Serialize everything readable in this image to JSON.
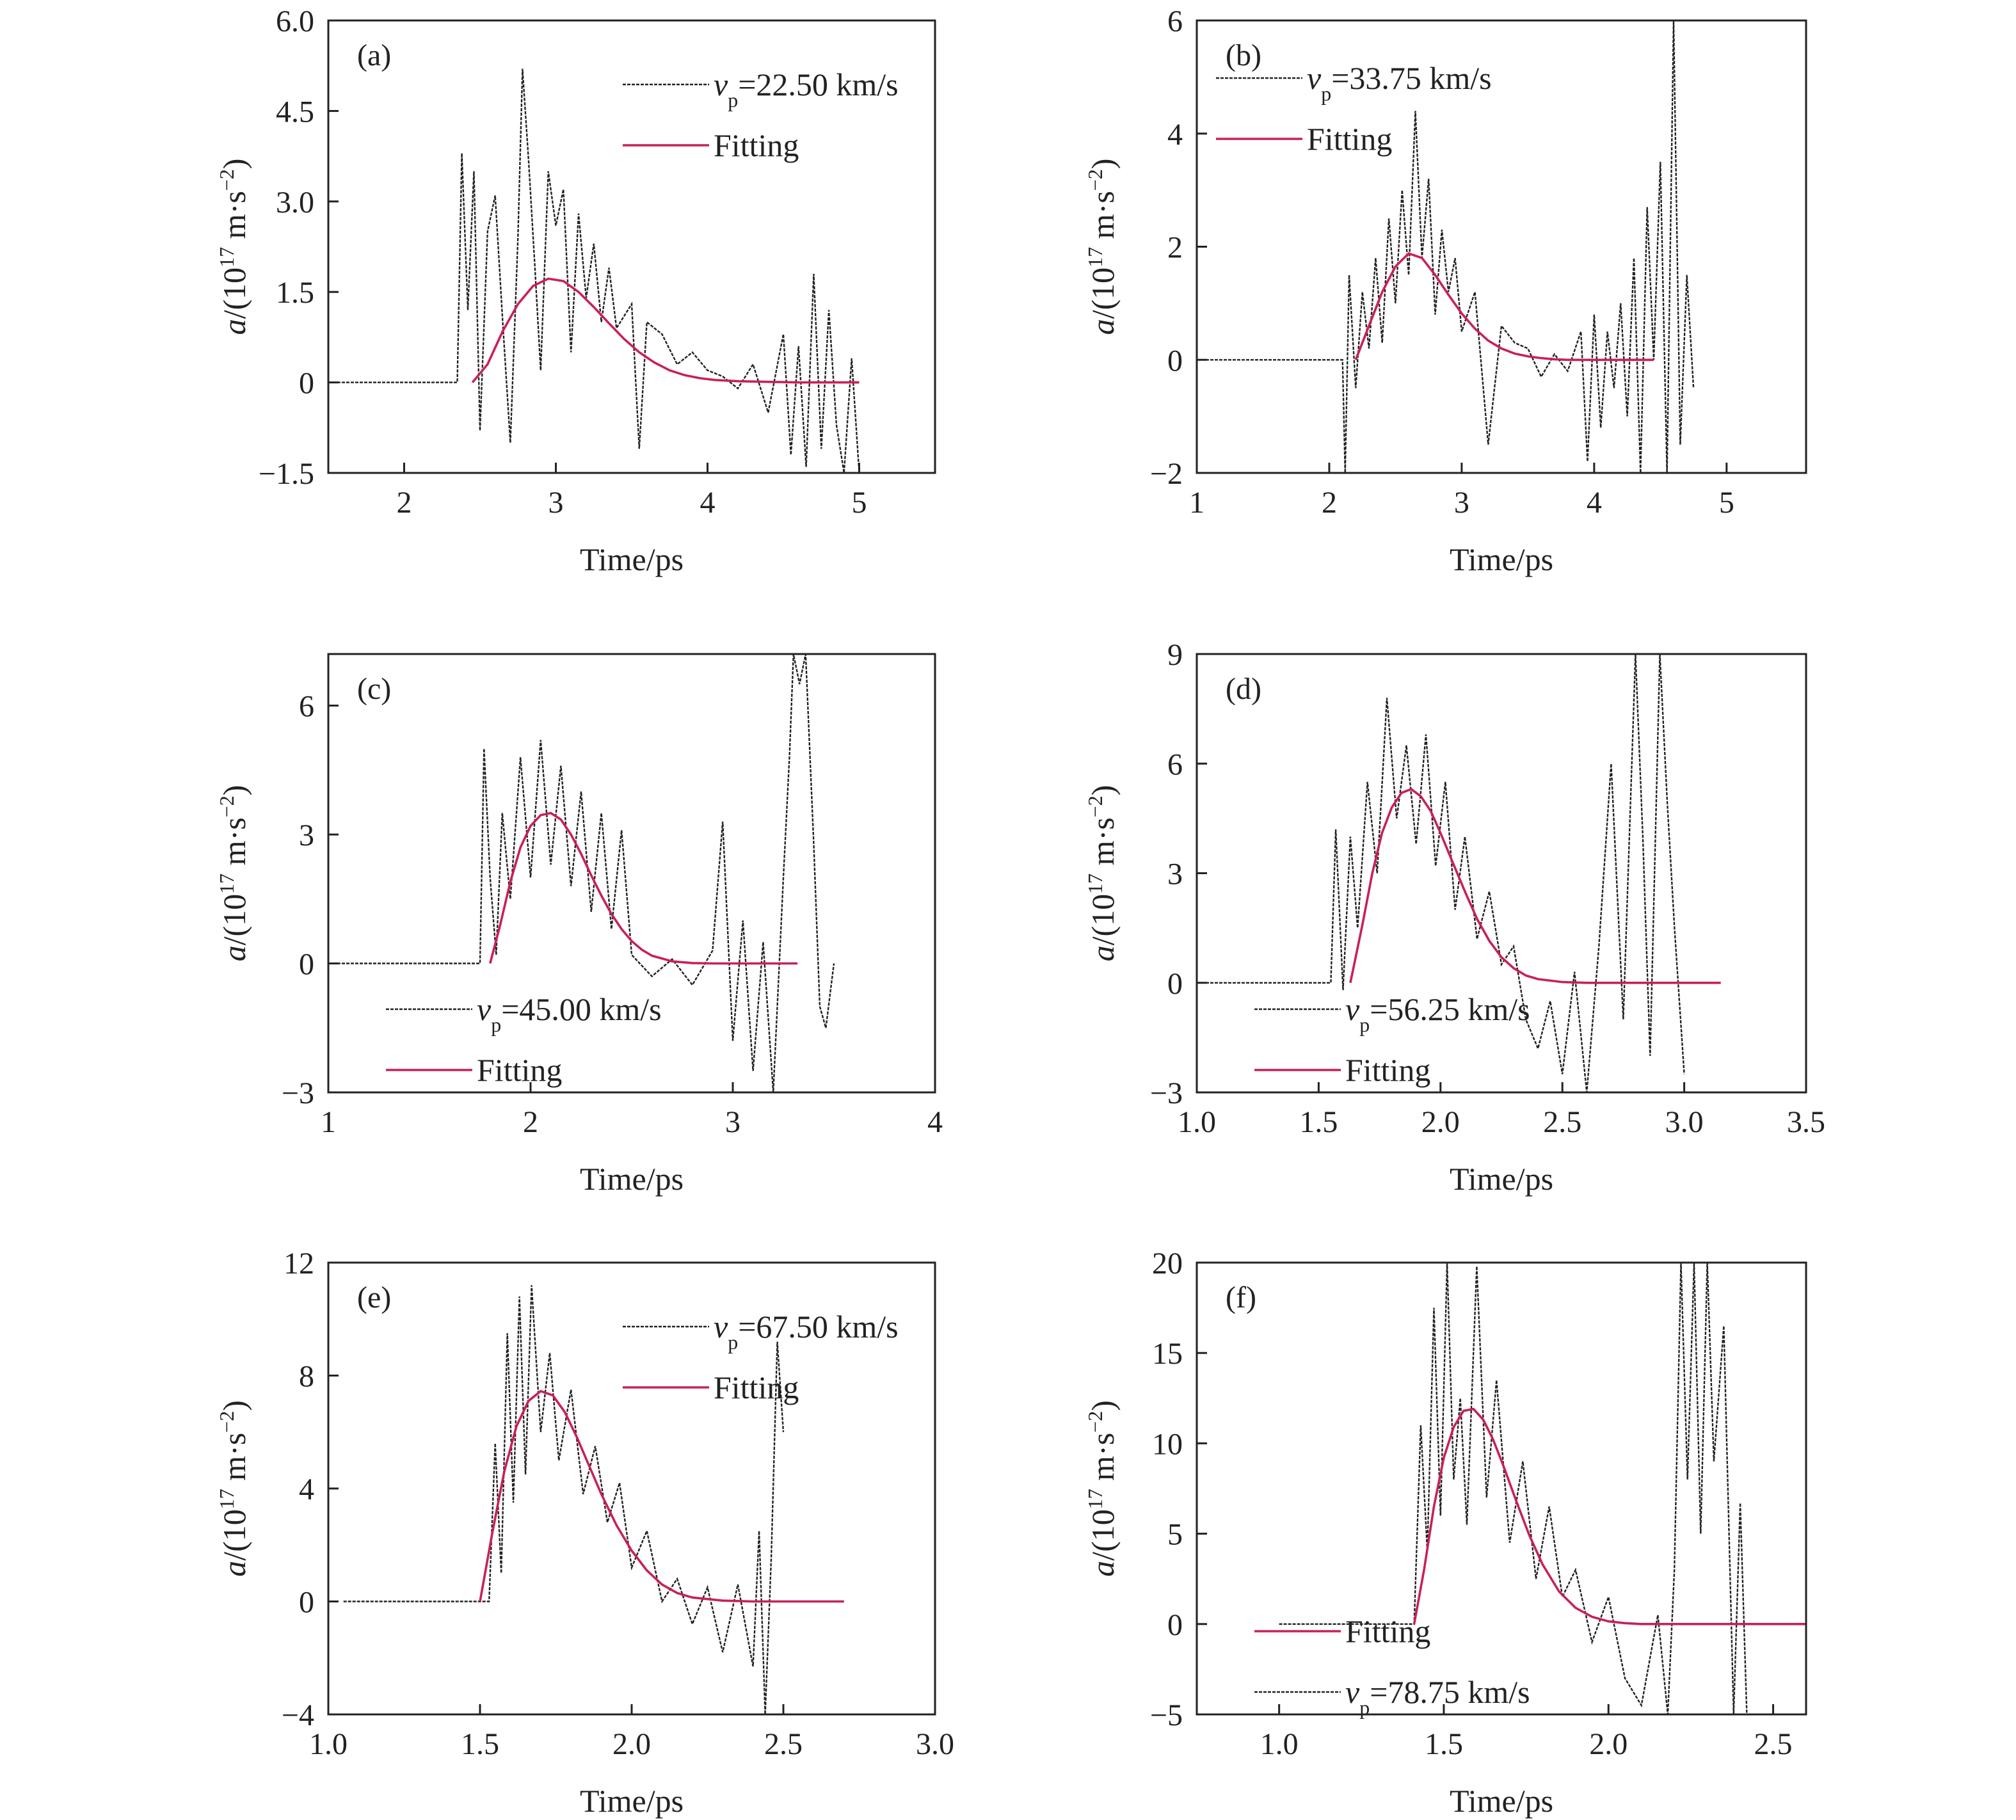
{
  "chart_data": [
    {
      "type": "line",
      "panel_label": "(a)",
      "xlabel": "Time/ps",
      "ylabel": "a/(10^17 m·s^-2)",
      "xlim": [
        1.5,
        5.5
      ],
      "ylim": [
        -1.5,
        6.0
      ],
      "xticks": [
        2,
        3,
        4,
        5
      ],
      "xtick_labels": [
        "2",
        "3",
        "4",
        "5"
      ],
      "yticks": [
        -1.5,
        0,
        1.5,
        3.0,
        4.5,
        6.0
      ],
      "ytick_labels": [
        "−1.5",
        "0",
        "1.5",
        "3.0",
        "4.5",
        "6.0"
      ],
      "legend_position": "top-right",
      "series": [
        {
          "name": "vp=22.50 km/s",
          "name_parts": {
            "sym": "v",
            "sub": "p",
            "rest": "=22.50 km/s"
          },
          "style": "dashed",
          "color": "#222222",
          "x": [
            1.5,
            2.35,
            2.38,
            2.42,
            2.46,
            2.5,
            2.55,
            2.6,
            2.65,
            2.7,
            2.75,
            2.78,
            2.82,
            2.86,
            2.9,
            2.95,
            3.0,
            3.05,
            3.1,
            3.15,
            3.2,
            3.25,
            3.3,
            3.35,
            3.4,
            3.5,
            3.55,
            3.6,
            3.7,
            3.8,
            3.9,
            4.0,
            4.1,
            4.2,
            4.3,
            4.4,
            4.5,
            4.55,
            4.6,
            4.65,
            4.7,
            4.75,
            4.8,
            4.85,
            4.9,
            4.95,
            5.0
          ],
          "y": [
            0,
            0,
            3.8,
            1.2,
            3.5,
            -0.8,
            2.5,
            3.1,
            1.0,
            -1.0,
            2.4,
            5.2,
            3.7,
            2.0,
            0.2,
            3.5,
            2.6,
            3.2,
            0.5,
            2.8,
            1.4,
            2.3,
            1.0,
            1.9,
            0.9,
            1.3,
            -1.1,
            1.0,
            0.8,
            0.3,
            0.5,
            0.2,
            0.1,
            -0.1,
            0.3,
            -0.5,
            0.8,
            -1.2,
            0.6,
            -1.4,
            1.8,
            -1.1,
            1.2,
            -0.7,
            -1.5,
            0.4,
            -1.5
          ]
        },
        {
          "name": "Fitting",
          "style": "solid",
          "color": "#c8205a",
          "x": [
            2.45,
            2.55,
            2.65,
            2.75,
            2.85,
            2.95,
            3.05,
            3.15,
            3.25,
            3.35,
            3.45,
            3.55,
            3.65,
            3.75,
            3.85,
            3.95,
            4.05,
            4.2,
            4.4,
            4.6,
            4.8,
            5.0
          ],
          "y": [
            0.0,
            0.3,
            0.85,
            1.3,
            1.6,
            1.72,
            1.68,
            1.5,
            1.25,
            0.98,
            0.72,
            0.5,
            0.33,
            0.2,
            0.12,
            0.07,
            0.04,
            0.02,
            0.01,
            0.0,
            0.0,
            0.0
          ]
        }
      ]
    },
    {
      "type": "line",
      "panel_label": "(b)",
      "xlabel": "Time/ps",
      "ylabel": "a/(10^17 m·s^-2)",
      "xlim": [
        1,
        5.6
      ],
      "ylim": [
        -2,
        6
      ],
      "xticks": [
        1,
        2,
        3,
        4,
        5
      ],
      "xtick_labels": [
        "1",
        "2",
        "3",
        "4",
        "5"
      ],
      "yticks": [
        -2,
        0,
        2,
        4,
        6
      ],
      "ytick_labels": [
        "−2",
        "0",
        "2",
        "4",
        "6"
      ],
      "legend_position": "top-left",
      "series": [
        {
          "name": "vp=33.75 km/s",
          "name_parts": {
            "sym": "v",
            "sub": "p",
            "rest": "=33.75 km/s"
          },
          "style": "dashed",
          "color": "#222222",
          "x": [
            1.0,
            2.1,
            2.12,
            2.15,
            2.2,
            2.25,
            2.3,
            2.35,
            2.4,
            2.45,
            2.5,
            2.55,
            2.6,
            2.65,
            2.7,
            2.75,
            2.8,
            2.85,
            2.9,
            2.95,
            3.0,
            3.1,
            3.2,
            3.3,
            3.4,
            3.5,
            3.6,
            3.7,
            3.8,
            3.9,
            3.95,
            4.0,
            4.05,
            4.1,
            4.15,
            4.2,
            4.25,
            4.3,
            4.35,
            4.4,
            4.45,
            4.5,
            4.55,
            4.6,
            4.65,
            4.7,
            4.75
          ],
          "y": [
            0,
            0,
            -2.0,
            1.5,
            -0.5,
            1.2,
            0.2,
            1.8,
            0.3,
            2.5,
            1.0,
            3.0,
            1.5,
            4.4,
            1.8,
            3.2,
            0.8,
            2.3,
            1.2,
            1.8,
            0.5,
            1.2,
            -1.5,
            0.6,
            0.3,
            0.2,
            -0.3,
            0.1,
            -0.2,
            0.5,
            -1.8,
            0.8,
            -1.2,
            0.5,
            -0.5,
            1.0,
            -1.0,
            1.8,
            -2.0,
            2.7,
            0.0,
            3.5,
            -2.0,
            6.0,
            -1.5,
            1.5,
            -0.5
          ]
        },
        {
          "name": "Fitting",
          "style": "solid",
          "color": "#c8205a",
          "x": [
            2.2,
            2.3,
            2.4,
            2.5,
            2.6,
            2.7,
            2.8,
            2.9,
            3.0,
            3.1,
            3.2,
            3.3,
            3.4,
            3.5,
            3.6,
            3.7,
            3.8,
            3.9,
            4.0,
            4.2,
            4.45
          ],
          "y": [
            0.0,
            0.6,
            1.2,
            1.65,
            1.88,
            1.8,
            1.5,
            1.15,
            0.82,
            0.55,
            0.34,
            0.2,
            0.11,
            0.06,
            0.03,
            0.01,
            0.0,
            0.0,
            0.0,
            0.0,
            0.0
          ]
        }
      ]
    },
    {
      "type": "line",
      "panel_label": "(c)",
      "xlabel": "Time/ps",
      "ylabel": "a/(10^17 m·s^-2)",
      "xlim": [
        1,
        4
      ],
      "ylim": [
        -3,
        7.2
      ],
      "xticks": [
        1,
        2,
        3,
        4
      ],
      "xtick_labels": [
        "1",
        "2",
        "3",
        "4"
      ],
      "yticks": [
        -3,
        0,
        3,
        6
      ],
      "ytick_labels": [
        "−3",
        "0",
        "3",
        "6"
      ],
      "legend_position": "bottom-left",
      "series": [
        {
          "name": "vp=45.00 km/s",
          "name_parts": {
            "sym": "v",
            "sub": "p",
            "rest": "=45.00 km/s"
          },
          "style": "dashed",
          "color": "#222222",
          "x": [
            1.0,
            1.75,
            1.77,
            1.8,
            1.83,
            1.86,
            1.9,
            1.95,
            2.0,
            2.05,
            2.1,
            2.15,
            2.2,
            2.25,
            2.3,
            2.35,
            2.4,
            2.45,
            2.5,
            2.6,
            2.7,
            2.8,
            2.9,
            2.95,
            3.0,
            3.05,
            3.1,
            3.15,
            3.2,
            3.25,
            3.28,
            3.3,
            3.33,
            3.36,
            3.4,
            3.43,
            3.46,
            3.5
          ],
          "y": [
            0,
            0,
            5.0,
            2.0,
            0.2,
            3.5,
            1.5,
            4.8,
            2.0,
            5.2,
            2.3,
            4.6,
            1.8,
            4.0,
            1.2,
            3.5,
            0.8,
            3.1,
            0.2,
            -0.3,
            0.1,
            -0.5,
            0.3,
            3.3,
            -1.8,
            1.0,
            -2.5,
            0.5,
            -3.0,
            2.0,
            4.8,
            7.2,
            6.5,
            7.2,
            2.8,
            -1.0,
            -1.5,
            0.0
          ]
        },
        {
          "name": "Fitting",
          "style": "solid",
          "color": "#c8205a",
          "x": [
            1.8,
            1.85,
            1.9,
            1.95,
            2.0,
            2.05,
            2.1,
            2.15,
            2.2,
            2.25,
            2.3,
            2.35,
            2.4,
            2.45,
            2.5,
            2.55,
            2.6,
            2.7,
            2.8,
            2.9,
            3.0,
            3.1,
            3.2,
            3.32
          ],
          "y": [
            0.0,
            0.9,
            1.9,
            2.7,
            3.2,
            3.45,
            3.5,
            3.35,
            3.0,
            2.55,
            2.05,
            1.58,
            1.15,
            0.8,
            0.52,
            0.32,
            0.18,
            0.05,
            0.01,
            0.0,
            0.0,
            0.0,
            0.0,
            0.0
          ]
        }
      ]
    },
    {
      "type": "line",
      "panel_label": "(d)",
      "xlabel": "Time/ps",
      "ylabel": "a/(10^17 m·s^-2)",
      "xlim": [
        1.0,
        3.5
      ],
      "ylim": [
        -3,
        9
      ],
      "xticks": [
        1.0,
        1.5,
        2.0,
        2.5,
        3.0,
        3.5
      ],
      "xtick_labels": [
        "1.0",
        "1.5",
        "2.0",
        "2.5",
        "3.0",
        "3.5"
      ],
      "yticks": [
        -3,
        0,
        3,
        6,
        9
      ],
      "ytick_labels": [
        "−3",
        "0",
        "3",
        "6",
        "9"
      ],
      "legend_position": "bottom-left",
      "series": [
        {
          "name": "vp=56.25 km/s",
          "name_parts": {
            "sym": "v",
            "sub": "p",
            "rest": "=56.25 km/s"
          },
          "style": "dashed",
          "color": "#222222",
          "x": [
            1.0,
            1.55,
            1.57,
            1.6,
            1.63,
            1.66,
            1.7,
            1.74,
            1.78,
            1.82,
            1.86,
            1.9,
            1.94,
            1.98,
            2.02,
            2.06,
            2.1,
            2.15,
            2.2,
            2.25,
            2.3,
            2.35,
            2.4,
            2.45,
            2.5,
            2.55,
            2.6,
            2.65,
            2.7,
            2.75,
            2.8,
            2.83,
            2.86,
            2.9,
            2.93,
            2.96,
            3.0
          ],
          "y": [
            0,
            0,
            4.2,
            -0.2,
            4.0,
            1.5,
            5.5,
            3.0,
            7.8,
            4.5,
            6.5,
            3.8,
            6.8,
            3.2,
            5.5,
            2.0,
            4.0,
            1.2,
            2.5,
            0.5,
            1.0,
            -1.0,
            -1.8,
            -0.5,
            -2.5,
            0.3,
            -3.0,
            1.0,
            6.0,
            -1.0,
            9.0,
            4.0,
            -2.0,
            9.0,
            5.0,
            1.5,
            -2.5
          ]
        },
        {
          "name": "Fitting",
          "style": "solid",
          "color": "#c8205a",
          "x": [
            1.63,
            1.68,
            1.72,
            1.76,
            1.8,
            1.84,
            1.88,
            1.92,
            1.96,
            2.0,
            2.05,
            2.1,
            2.15,
            2.2,
            2.25,
            2.3,
            2.35,
            2.4,
            2.5,
            2.6,
            2.8,
            3.0,
            3.15
          ],
          "y": [
            0.0,
            1.6,
            3.0,
            4.1,
            4.8,
            5.2,
            5.3,
            5.1,
            4.7,
            4.1,
            3.3,
            2.5,
            1.75,
            1.15,
            0.7,
            0.4,
            0.2,
            0.1,
            0.02,
            0.0,
            0.0,
            0.0,
            0.0
          ]
        }
      ]
    },
    {
      "type": "line",
      "panel_label": "(e)",
      "xlabel": "Time/ps",
      "ylabel": "a/(10^17 m·s^-2)",
      "xlim": [
        1.0,
        3.0
      ],
      "ylim": [
        -4,
        12
      ],
      "xticks": [
        1.0,
        1.5,
        2.0,
        2.5,
        3.0
      ],
      "xtick_labels": [
        "1.0",
        "1.5",
        "2.0",
        "2.5",
        "3.0"
      ],
      "yticks": [
        -4,
        0,
        4,
        8,
        12
      ],
      "ytick_labels": [
        "−4",
        "0",
        "4",
        "8",
        "12"
      ],
      "legend_position": "top-right",
      "series": [
        {
          "name": "vp=67.50 km/s",
          "name_parts": {
            "sym": "v",
            "sub": "p",
            "rest": "=67.50 km/s"
          },
          "style": "dashed",
          "color": "#222222",
          "x": [
            1.05,
            1.53,
            1.55,
            1.57,
            1.59,
            1.61,
            1.63,
            1.65,
            1.67,
            1.7,
            1.73,
            1.76,
            1.8,
            1.84,
            1.88,
            1.92,
            1.96,
            2.0,
            2.05,
            2.1,
            2.15,
            2.2,
            2.25,
            2.3,
            2.35,
            2.4,
            2.42,
            2.44,
            2.46,
            2.48,
            2.5
          ],
          "y": [
            0,
            0,
            5.6,
            1.0,
            9.5,
            3.5,
            10.8,
            4.5,
            11.2,
            6.0,
            8.8,
            5.0,
            7.5,
            3.8,
            5.5,
            2.8,
            4.2,
            1.2,
            2.5,
            0.0,
            0.8,
            -0.8,
            0.5,
            -1.8,
            0.6,
            -2.3,
            2.5,
            -4.0,
            1.5,
            9.2,
            6.0
          ]
        },
        {
          "name": "Fitting",
          "style": "solid",
          "color": "#c8205a",
          "x": [
            1.5,
            1.54,
            1.58,
            1.62,
            1.66,
            1.7,
            1.74,
            1.78,
            1.82,
            1.86,
            1.9,
            1.95,
            2.0,
            2.05,
            2.1,
            2.15,
            2.2,
            2.3,
            2.4,
            2.5,
            2.6,
            2.7
          ],
          "y": [
            0.0,
            2.4,
            4.6,
            6.2,
            7.1,
            7.45,
            7.3,
            6.7,
            5.8,
            4.8,
            3.8,
            2.7,
            1.8,
            1.1,
            0.6,
            0.3,
            0.14,
            0.03,
            0.0,
            0.0,
            0.0,
            0.0
          ]
        }
      ]
    },
    {
      "type": "line",
      "panel_label": "(f)",
      "xlabel": "Time/ps",
      "ylabel": "a/(10^17 m·s^-2)",
      "xlim": [
        0.75,
        2.6
      ],
      "ylim": [
        -5,
        20
      ],
      "xticks": [
        1.0,
        1.5,
        2.0,
        2.5
      ],
      "xtick_labels": [
        "1.0",
        "1.5",
        "2.0",
        "2.5"
      ],
      "yticks": [
        -5,
        0,
        5,
        10,
        15,
        20
      ],
      "ytick_labels": [
        "−5",
        "0",
        "5",
        "10",
        "15",
        "20"
      ],
      "legend_position": "bottom-left",
      "series": [
        {
          "name": "vp=78.75 km/s",
          "name_parts": {
            "sym": "v",
            "sub": "p",
            "rest": "=78.75 km/s"
          },
          "style": "dashed",
          "color": "#222222",
          "x": [
            1.0,
            1.41,
            1.43,
            1.45,
            1.47,
            1.49,
            1.51,
            1.53,
            1.55,
            1.57,
            1.6,
            1.63,
            1.66,
            1.7,
            1.74,
            1.78,
            1.82,
            1.86,
            1.9,
            1.95,
            2.0,
            2.05,
            2.1,
            2.15,
            2.18,
            2.2,
            2.22,
            2.24,
            2.26,
            2.28,
            2.3,
            2.32,
            2.35,
            2.38,
            2.4,
            2.42
          ],
          "y": [
            0,
            0,
            11.0,
            4.0,
            17.5,
            6.0,
            20.0,
            8.0,
            12.5,
            5.5,
            19.8,
            7.0,
            13.5,
            4.5,
            9.0,
            2.5,
            6.5,
            1.5,
            3.0,
            -1.0,
            1.5,
            -3.0,
            -4.5,
            0.5,
            -5.0,
            3.0,
            20.0,
            8.0,
            20.0,
            5.0,
            20.0,
            9.0,
            16.5,
            -5.0,
            6.7,
            -5.0
          ]
        },
        {
          "name": "Fitting",
          "style": "solid",
          "color": "#c8205a",
          "x": [
            1.41,
            1.44,
            1.47,
            1.5,
            1.53,
            1.56,
            1.59,
            1.62,
            1.65,
            1.68,
            1.72,
            1.76,
            1.8,
            1.85,
            1.9,
            1.95,
            2.0,
            2.05,
            2.1,
            2.2,
            2.4,
            2.6
          ],
          "y": [
            0.0,
            3.0,
            6.5,
            9.2,
            10.9,
            11.8,
            11.9,
            11.3,
            10.2,
            8.8,
            6.8,
            4.9,
            3.3,
            1.8,
            0.9,
            0.4,
            0.15,
            0.05,
            0.0,
            0.0,
            0.0,
            0.0
          ]
        }
      ]
    }
  ]
}
